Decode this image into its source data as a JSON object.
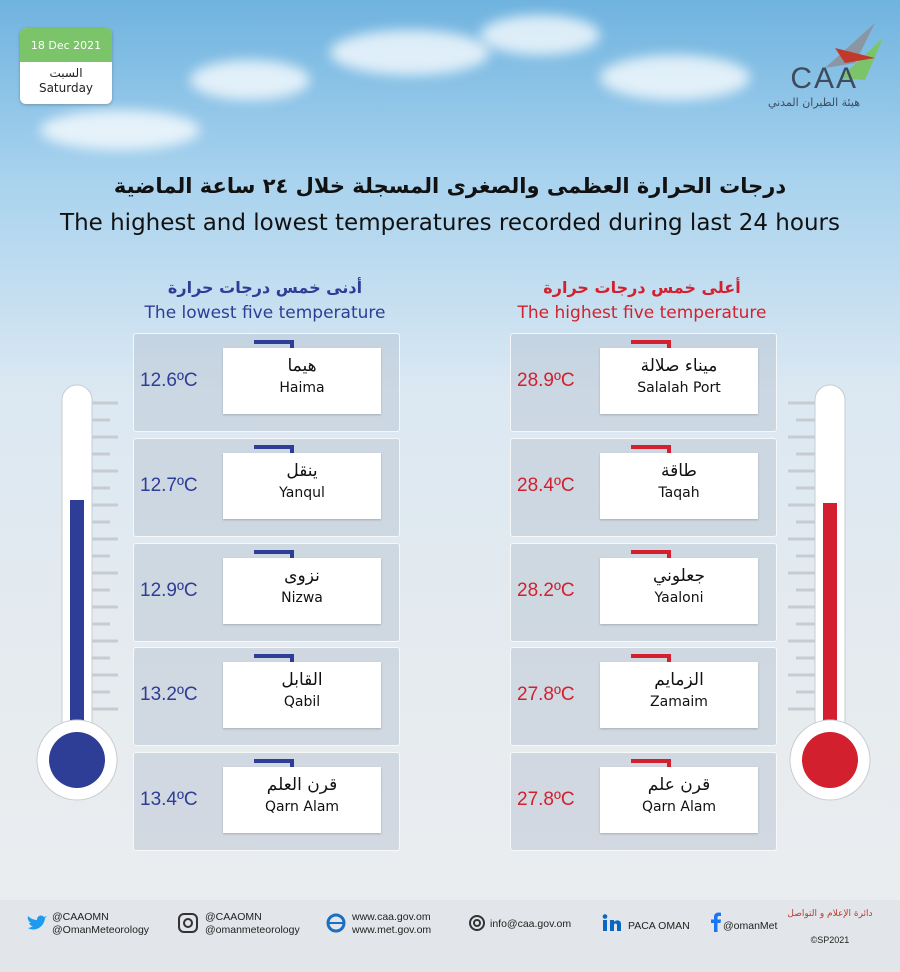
{
  "date": {
    "date": "18 Dec 2021",
    "weekday_ar": "السبت",
    "weekday_en": "Saturday"
  },
  "logo": {
    "abbr": "CAA",
    "name_ar": "هيئة الطيران المدني"
  },
  "header": {
    "title_ar": "درجات الحرارة العظمى والصغرى المسجلة خلال ٢٤ ساعة الماضية",
    "title_en": "The highest and lowest temperatures recorded during last 24 hours"
  },
  "lowest": {
    "heading_ar": "أدنى خمس درجات حرارة",
    "heading_en": "The lowest five temperature",
    "rows": [
      {
        "name_ar": "هيما",
        "name_en": "Haima",
        "temperature": "12.6ºC"
      },
      {
        "name_ar": "ينقل",
        "name_en": "Yanqul",
        "temperature": "12.7ºC"
      },
      {
        "name_ar": "نزوى",
        "name_en": "Nizwa",
        "temperature": "12.9ºC"
      },
      {
        "name_ar": "القابل",
        "name_en": "Qabil",
        "temperature": "13.2ºC"
      },
      {
        "name_ar": "قرن العلم",
        "name_en": "Qarn Alam",
        "temperature": "13.4ºC"
      }
    ]
  },
  "highest": {
    "heading_ar": "أعلى خمس درجات حرارة",
    "heading_en": "The highest five temperature",
    "rows": [
      {
        "name_ar": "ميناء صلالة",
        "name_en": "Salalah Port",
        "temperature": "28.9ºC"
      },
      {
        "name_ar": "طاقة",
        "name_en": "Taqah",
        "temperature": "28.4ºC"
      },
      {
        "name_ar": "جعلوني",
        "name_en": "Yaaloni",
        "temperature": "28.2ºC"
      },
      {
        "name_ar": "الزمايم",
        "name_en": "Zamaim",
        "temperature": "27.8ºC"
      },
      {
        "name_ar": "قرن علم",
        "name_en": "Qarn Alam",
        "temperature": "27.8ºC"
      }
    ]
  },
  "footer": {
    "twitter": [
      "@CAAOMN",
      "@OmanMeteorology"
    ],
    "instagram": [
      "@CAAOMN",
      "@omanmeteorology"
    ],
    "web": [
      "www.caa.gov.om",
      "www.met.gov.om"
    ],
    "email": "info@caa.gov.om",
    "linkedin": "PACA OMAN",
    "facebook": "@omanMet",
    "dept": [
      "دائرة الإعلام و التواصل",
      "©SP2021"
    ]
  }
}
